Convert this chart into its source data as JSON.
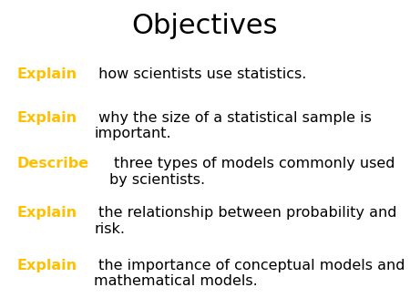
{
  "title": "Objectives",
  "title_fontsize": 22,
  "title_color": "#000000",
  "background_color": "#ffffff",
  "body_color": "#000000",
  "keyword_color": "#FFC000",
  "body_fontsize": 11.5,
  "bullets": [
    {
      "keyword": "Explain",
      "rest": " how scientists use statistics."
    },
    {
      "keyword": "Explain",
      "rest": " why the size of a statistical sample is\nimportant."
    },
    {
      "keyword": "Describe",
      "rest": " three types of models commonly used\nby scientists."
    },
    {
      "keyword": "Explain",
      "rest": " the relationship between probability and\nrisk."
    },
    {
      "keyword": "Explain",
      "rest": " the importance of conceptual models and\nmathematical models."
    }
  ]
}
